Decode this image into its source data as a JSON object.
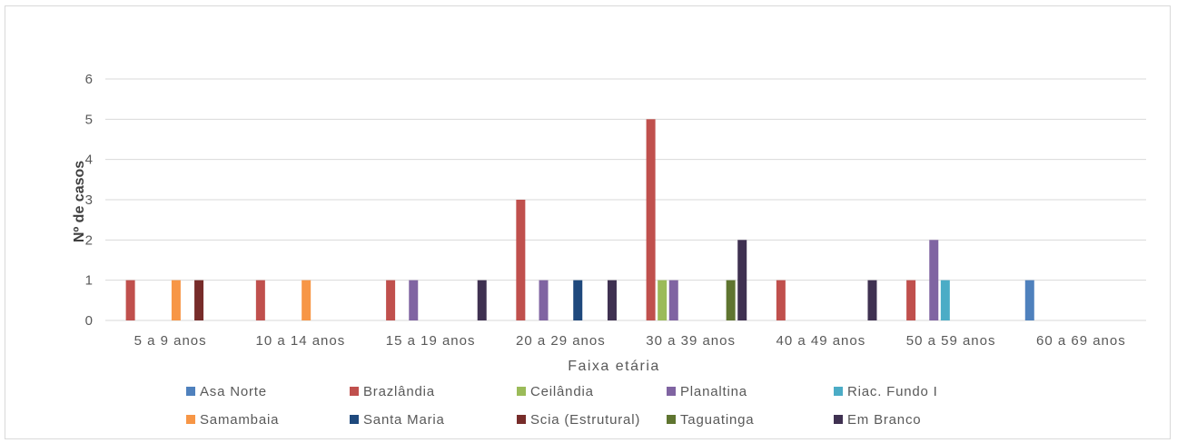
{
  "chart_data": {
    "type": "bar",
    "xlabel": "Faixa etária",
    "ylabel": "Nº de casos",
    "ylim": [
      0,
      6
    ],
    "yticks": [
      0,
      1,
      2,
      3,
      4,
      5,
      6
    ],
    "grid": true,
    "legend_position": "bottom",
    "categories": [
      "5 a 9 anos",
      "10 a 14 anos",
      "15 a 19 anos",
      "20 a 29 anos",
      "30 a 39 anos",
      "40 a 49 anos",
      "50 a 59 anos",
      "60 a 69 anos"
    ],
    "series": [
      {
        "name": "Asa Norte",
        "color": "#4f81bd",
        "values": [
          0,
          0,
          0,
          0,
          0,
          0,
          0,
          1
        ]
      },
      {
        "name": "Brazlândia",
        "color": "#c0504d",
        "values": [
          1,
          1,
          1,
          3,
          5,
          1,
          1,
          0
        ]
      },
      {
        "name": "Ceilândia",
        "color": "#9bbb59",
        "values": [
          0,
          0,
          0,
          0,
          1,
          0,
          0,
          0
        ]
      },
      {
        "name": "Planaltina",
        "color": "#8064a2",
        "values": [
          0,
          0,
          1,
          1,
          1,
          0,
          2,
          0
        ]
      },
      {
        "name": "Riac. Fundo I",
        "color": "#4bacc6",
        "values": [
          0,
          0,
          0,
          0,
          0,
          0,
          1,
          0
        ]
      },
      {
        "name": "Samambaia",
        "color": "#f79646",
        "values": [
          1,
          1,
          0,
          0,
          0,
          0,
          0,
          0
        ]
      },
      {
        "name": "Santa Maria",
        "color": "#1f497d",
        "values": [
          0,
          0,
          0,
          1,
          0,
          0,
          0,
          0
        ]
      },
      {
        "name": "Scia (Estrutural)",
        "color": "#772c2a",
        "values": [
          1,
          0,
          0,
          0,
          0,
          0,
          0,
          0
        ]
      },
      {
        "name": "Taguatinga",
        "color": "#5f7530",
        "values": [
          0,
          0,
          0,
          0,
          1,
          0,
          0,
          0
        ]
      },
      {
        "name": "Em Branco",
        "color": "#3f3151",
        "values": [
          0,
          0,
          1,
          1,
          2,
          1,
          0,
          0
        ]
      }
    ]
  }
}
